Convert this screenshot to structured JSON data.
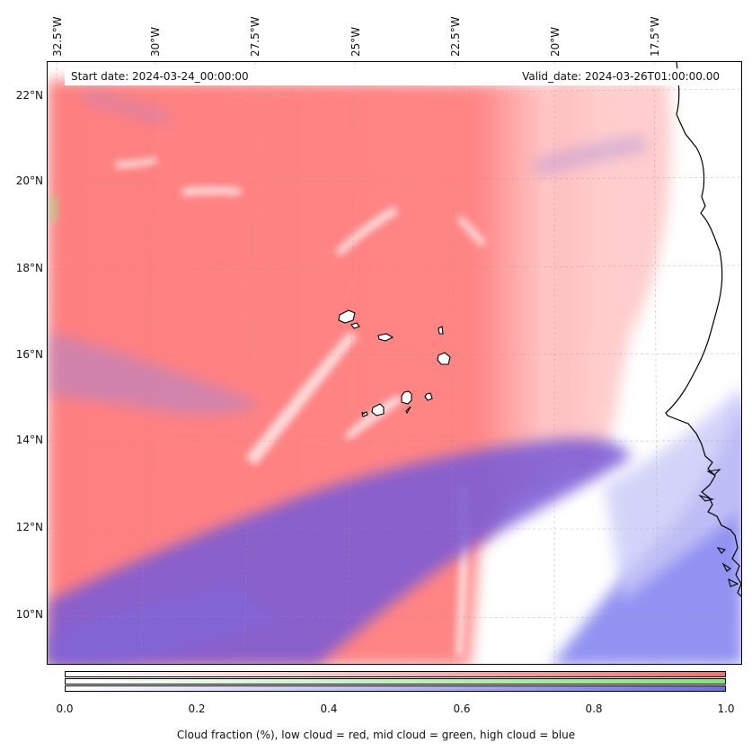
{
  "map": {
    "info": {
      "start_date": "Start date: 2024-03-24_00:00:00",
      "valid_date": "Valid_date: 2024-03-26T01:00:00.00"
    },
    "lon_labels": [
      "32.5°W",
      "30°W",
      "27.5°W",
      "25°W",
      "22.5°W",
      "20°W",
      "17.5°W"
    ],
    "lat_labels": [
      "22°N",
      "20°N",
      "18°N",
      "16°N",
      "14°N",
      "12°N",
      "10°N"
    ],
    "colors": {
      "low_cloud": "#ff7f7f",
      "mid_cloud": "#8fe87f",
      "high_cloud": "#7a5cd6",
      "clear": "#ffffff"
    }
  },
  "colorbar": {
    "ticks": [
      "0.0",
      "0.2",
      "0.4",
      "0.6",
      "0.8",
      "1.0"
    ],
    "title": "Cloud fraction (%), low cloud = red, mid cloud = green, high cloud = blue",
    "gradients": {
      "low": [
        "#ffffff",
        "#ff6a6a"
      ],
      "mid": [
        "#ffffff",
        "#7ee86e"
      ],
      "high": [
        "#ffffff",
        "#6b6bf0"
      ]
    }
  }
}
